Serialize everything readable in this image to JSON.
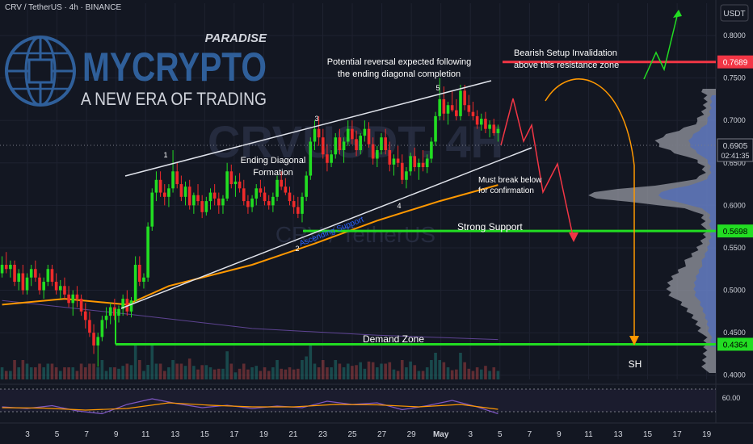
{
  "header": {
    "symbol_line": "CRV / TetherUS · 4h · BINANCE"
  },
  "brand": {
    "name": "MYCRYPTO",
    "tag": "PARADISE",
    "slogan": "A NEW ERA OF TRADING",
    "color": "#2f5f9a"
  },
  "watermark": {
    "ticker": "CRVUSDT, 4H",
    "name": "CRV / TetherUS"
  },
  "chart_data": {
    "type": "candlestick",
    "currency_label": "USDT",
    "ylim": [
      0.395,
      0.838
    ],
    "y_ticks": [
      "0.8000",
      "0.7500",
      "0.7000",
      "0.6500",
      "0.6000",
      "0.5500",
      "0.5000",
      "0.4500",
      "0.4000"
    ],
    "x_ticks": [
      "3",
      "5",
      "7",
      "9",
      "11",
      "13",
      "15",
      "17",
      "19",
      "21",
      "23",
      "25",
      "27",
      "29",
      "May",
      "3",
      "5",
      "7",
      "9",
      "11",
      "13",
      "15",
      "17",
      "19"
    ],
    "last_price": 0.6905,
    "countdown": "02:41:35",
    "levels": [
      {
        "name": "resistance",
        "value": 0.7689,
        "label": "0.7689",
        "color": "#f23645"
      },
      {
        "name": "strong-support",
        "value": 0.5698,
        "label": "0.5698",
        "color": "#22dd22"
      },
      {
        "name": "demand",
        "value": 0.4364,
        "label": "0.4364",
        "color": "#22dd22"
      }
    ],
    "annotations": {
      "reversal_line1": "Potential reversal expected following",
      "reversal_line2": "the ending diagonal completion",
      "bearish_line1": "Bearish Setup Invalidation",
      "bearish_line2": "above this resistance zone",
      "ending_line1": "Ending Diagonal",
      "ending_line2": "Formation",
      "must_line1": "Must break below",
      "must_line2": "for confirmation",
      "strong_support": "Strong Support",
      "demand_zone": "Demand Zone",
      "ascending_support": "Ascending Support",
      "sh": "SH"
    },
    "wave_labels": [
      "1",
      "2",
      "3",
      "4",
      "5"
    ],
    "candles": [
      [
        0.52,
        0.54,
        0.515,
        0.53
      ],
      [
        0.53,
        0.545,
        0.52,
        0.525
      ],
      [
        0.525,
        0.535,
        0.515,
        0.53
      ],
      [
        0.53,
        0.535,
        0.505,
        0.51
      ],
      [
        0.51,
        0.525,
        0.5,
        0.52
      ],
      [
        0.52,
        0.53,
        0.495,
        0.5
      ],
      [
        0.5,
        0.52,
        0.495,
        0.515
      ],
      [
        0.515,
        0.53,
        0.505,
        0.525
      ],
      [
        0.525,
        0.535,
        0.51,
        0.515
      ],
      [
        0.515,
        0.52,
        0.495,
        0.5
      ],
      [
        0.5,
        0.515,
        0.49,
        0.51
      ],
      [
        0.51,
        0.53,
        0.505,
        0.525
      ],
      [
        0.525,
        0.53,
        0.505,
        0.51
      ],
      [
        0.51,
        0.52,
        0.495,
        0.5
      ],
      [
        0.5,
        0.512,
        0.49,
        0.505
      ],
      [
        0.505,
        0.515,
        0.49,
        0.495
      ],
      [
        0.495,
        0.505,
        0.48,
        0.485
      ],
      [
        0.485,
        0.5,
        0.47,
        0.495
      ],
      [
        0.495,
        0.505,
        0.48,
        0.49
      ],
      [
        0.49,
        0.495,
        0.47,
        0.475
      ],
      [
        0.475,
        0.485,
        0.455,
        0.465
      ],
      [
        0.465,
        0.475,
        0.445,
        0.45
      ],
      [
        0.45,
        0.46,
        0.425,
        0.435
      ],
      [
        0.435,
        0.45,
        0.41,
        0.445
      ],
      [
        0.445,
        0.47,
        0.44,
        0.465
      ],
      [
        0.465,
        0.48,
        0.455,
        0.47
      ],
      [
        0.47,
        0.485,
        0.46,
        0.48
      ],
      [
        0.48,
        0.49,
        0.465,
        0.47
      ],
      [
        0.47,
        0.482,
        0.462,
        0.478
      ],
      [
        0.478,
        0.495,
        0.47,
        0.49
      ],
      [
        0.49,
        0.5,
        0.47,
        0.475
      ],
      [
        0.475,
        0.492,
        0.468,
        0.488
      ],
      [
        0.488,
        0.54,
        0.485,
        0.53
      ],
      [
        0.53,
        0.54,
        0.505,
        0.51
      ],
      [
        0.51,
        0.52,
        0.502,
        0.515
      ],
      [
        0.515,
        0.58,
        0.51,
        0.575
      ],
      [
        0.575,
        0.62,
        0.57,
        0.615
      ],
      [
        0.615,
        0.64,
        0.605,
        0.63
      ],
      [
        0.63,
        0.64,
        0.61,
        0.615
      ],
      [
        0.615,
        0.625,
        0.6,
        0.61
      ],
      [
        0.61,
        0.625,
        0.598,
        0.62
      ],
      [
        0.62,
        0.665,
        0.615,
        0.64
      ],
      [
        0.64,
        0.65,
        0.62,
        0.625
      ],
      [
        0.625,
        0.635,
        0.605,
        0.61
      ],
      [
        0.61,
        0.628,
        0.6,
        0.622
      ],
      [
        0.622,
        0.63,
        0.595,
        0.6
      ],
      [
        0.6,
        0.615,
        0.59,
        0.612
      ],
      [
        0.612,
        0.625,
        0.6,
        0.605
      ],
      [
        0.605,
        0.612,
        0.585,
        0.592
      ],
      [
        0.592,
        0.61,
        0.588,
        0.605
      ],
      [
        0.605,
        0.62,
        0.595,
        0.615
      ],
      [
        0.615,
        0.625,
        0.6,
        0.608
      ],
      [
        0.608,
        0.615,
        0.59,
        0.6
      ],
      [
        0.6,
        0.612,
        0.59,
        0.608
      ],
      [
        0.608,
        0.65,
        0.605,
        0.64
      ],
      [
        0.64,
        0.648,
        0.62,
        0.625
      ],
      [
        0.625,
        0.635,
        0.61,
        0.628
      ],
      [
        0.628,
        0.638,
        0.615,
        0.62
      ],
      [
        0.62,
        0.63,
        0.6,
        0.605
      ],
      [
        0.605,
        0.612,
        0.59,
        0.598
      ],
      [
        0.598,
        0.612,
        0.592,
        0.608
      ],
      [
        0.608,
        0.625,
        0.6,
        0.62
      ],
      [
        0.62,
        0.63,
        0.61,
        0.615
      ],
      [
        0.615,
        0.622,
        0.6,
        0.605
      ],
      [
        0.605,
        0.612,
        0.595,
        0.6
      ],
      [
        0.6,
        0.615,
        0.592,
        0.61
      ],
      [
        0.61,
        0.635,
        0.605,
        0.63
      ],
      [
        0.63,
        0.64,
        0.618,
        0.622
      ],
      [
        0.622,
        0.632,
        0.612,
        0.615
      ],
      [
        0.615,
        0.622,
        0.6,
        0.605
      ],
      [
        0.605,
        0.612,
        0.59,
        0.598
      ],
      [
        0.598,
        0.61,
        0.585,
        0.59
      ],
      [
        0.59,
        0.615,
        0.58,
        0.61
      ],
      [
        0.61,
        0.64,
        0.605,
        0.635
      ],
      [
        0.635,
        0.68,
        0.63,
        0.675
      ],
      [
        0.675,
        0.7,
        0.665,
        0.69
      ],
      [
        0.69,
        0.705,
        0.67,
        0.68
      ],
      [
        0.68,
        0.69,
        0.655,
        0.66
      ],
      [
        0.66,
        0.672,
        0.64,
        0.65
      ],
      [
        0.65,
        0.665,
        0.645,
        0.66
      ],
      [
        0.66,
        0.685,
        0.655,
        0.68
      ],
      [
        0.68,
        0.69,
        0.66,
        0.665
      ],
      [
        0.665,
        0.68,
        0.65,
        0.675
      ],
      [
        0.675,
        0.7,
        0.67,
        0.69
      ],
      [
        0.69,
        0.7,
        0.672,
        0.678
      ],
      [
        0.678,
        0.688,
        0.658,
        0.665
      ],
      [
        0.665,
        0.685,
        0.66,
        0.682
      ],
      [
        0.682,
        0.7,
        0.675,
        0.69
      ],
      [
        0.69,
        0.698,
        0.668,
        0.672
      ],
      [
        0.672,
        0.68,
        0.648,
        0.655
      ],
      [
        0.655,
        0.67,
        0.645,
        0.665
      ],
      [
        0.665,
        0.685,
        0.66,
        0.68
      ],
      [
        0.68,
        0.69,
        0.66,
        0.665
      ],
      [
        0.665,
        0.675,
        0.64,
        0.648
      ],
      [
        0.648,
        0.66,
        0.635,
        0.655
      ],
      [
        0.655,
        0.67,
        0.645,
        0.65
      ],
      [
        0.65,
        0.66,
        0.625,
        0.63
      ],
      [
        0.63,
        0.645,
        0.62,
        0.64
      ],
      [
        0.64,
        0.662,
        0.635,
        0.658
      ],
      [
        0.658,
        0.668,
        0.64,
        0.645
      ],
      [
        0.645,
        0.655,
        0.63,
        0.65
      ],
      [
        0.65,
        0.665,
        0.64,
        0.645
      ],
      [
        0.645,
        0.66,
        0.638,
        0.655
      ],
      [
        0.655,
        0.68,
        0.65,
        0.675
      ],
      [
        0.675,
        0.71,
        0.67,
        0.705
      ],
      [
        0.705,
        0.75,
        0.7,
        0.725
      ],
      [
        0.725,
        0.74,
        0.7,
        0.708
      ],
      [
        0.708,
        0.722,
        0.695,
        0.718
      ],
      [
        0.718,
        0.735,
        0.71,
        0.712
      ],
      [
        0.712,
        0.725,
        0.7,
        0.705
      ],
      [
        0.705,
        0.742,
        0.7,
        0.735
      ],
      [
        0.735,
        0.742,
        0.712,
        0.718
      ],
      [
        0.718,
        0.73,
        0.705,
        0.71
      ],
      [
        0.71,
        0.722,
        0.7,
        0.705
      ],
      [
        0.705,
        0.712,
        0.69,
        0.695
      ],
      [
        0.695,
        0.708,
        0.688,
        0.702
      ],
      [
        0.702,
        0.71,
        0.685,
        0.69
      ],
      [
        0.69,
        0.7,
        0.68,
        0.695
      ],
      [
        0.695,
        0.702,
        0.682,
        0.685
      ],
      [
        0.685,
        0.695,
        0.675,
        0.69
      ]
    ],
    "ma_orange": [
      [
        0,
        0.483
      ],
      [
        15,
        0.49
      ],
      [
        30,
        0.483
      ],
      [
        40,
        0.505
      ],
      [
        60,
        0.53
      ],
      [
        75,
        0.555
      ],
      [
        90,
        0.582
      ],
      [
        105,
        0.605
      ],
      [
        119,
        0.624
      ]
    ],
    "rsi": [
      [
        0,
        52
      ],
      [
        6,
        48
      ],
      [
        12,
        55
      ],
      [
        18,
        42
      ],
      [
        24,
        35
      ],
      [
        30,
        58
      ],
      [
        36,
        72
      ],
      [
        42,
        60
      ],
      [
        48,
        50
      ],
      [
        54,
        56
      ],
      [
        60,
        48
      ],
      [
        66,
        54
      ],
      [
        72,
        50
      ],
      [
        78,
        66
      ],
      [
        84,
        58
      ],
      [
        90,
        62
      ],
      [
        96,
        45
      ],
      [
        102,
        55
      ],
      [
        108,
        68
      ],
      [
        114,
        52
      ],
      [
        119,
        35
      ]
    ],
    "rsi_ma": [
      [
        0,
        50
      ],
      [
        10,
        49
      ],
      [
        20,
        44
      ],
      [
        30,
        48
      ],
      [
        40,
        62
      ],
      [
        50,
        56
      ],
      [
        60,
        52
      ],
      [
        70,
        52
      ],
      [
        80,
        58
      ],
      [
        90,
        57
      ],
      [
        100,
        52
      ],
      [
        110,
        58
      ],
      [
        119,
        46
      ]
    ],
    "rsi_tick": "60.00"
  }
}
